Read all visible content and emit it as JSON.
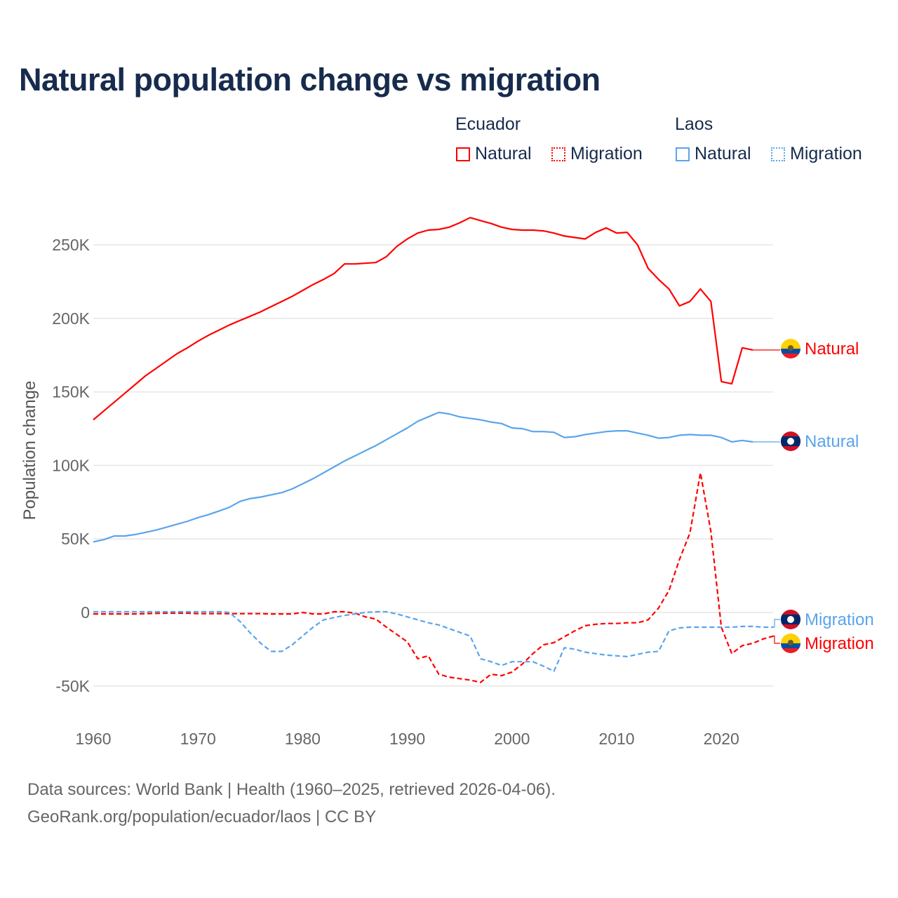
{
  "title": "Natural population change vs migration",
  "legend": {
    "groups": [
      {
        "name": "Ecuador",
        "items": [
          {
            "label": "Natural",
            "style": "solid"
          },
          {
            "label": "Migration",
            "style": "dotted"
          }
        ],
        "color": "#ff0000"
      },
      {
        "name": "Laos",
        "items": [
          {
            "label": "Natural",
            "style": "solid"
          },
          {
            "label": "Migration",
            "style": "dotted"
          }
        ],
        "color": "#5ba4ec"
      }
    ]
  },
  "footer": {
    "line1": "Data sources: World Bank | Health (1960–2025, retrieved 2026-04-06).",
    "line2": "GeoRank.org/population/ecuador/laos | CC BY"
  },
  "chart_data": {
    "type": "line",
    "title": "Natural population change vs migration",
    "xlabel": "",
    "ylabel": "Population change",
    "xlim": [
      1960,
      2025
    ],
    "ylim": [
      -70000,
      290000
    ],
    "xticks": [
      1960,
      1970,
      1980,
      1990,
      2000,
      2010,
      2020
    ],
    "xtick_labels": [
      "1960",
      "1970",
      "1980",
      "1990",
      "2000",
      "2010",
      "2020"
    ],
    "yticks": [
      -50000,
      0,
      50000,
      100000,
      150000,
      200000,
      250000
    ],
    "ytick_labels": [
      "-50K",
      "0",
      "50K",
      "100K",
      "150K",
      "200K",
      "250K"
    ],
    "grid": true,
    "series": [
      {
        "name": "Ecuador Natural",
        "end_label": "Natural",
        "country": "Ecuador",
        "color": "#ff0000",
        "dash": false,
        "start": 1960,
        "values": [
          131000,
          137000,
          143000,
          149000,
          155000,
          161000,
          166000,
          171000,
          176000,
          180000,
          184500,
          188500,
          192000,
          195500,
          198500,
          201500,
          204500,
          208000,
          211500,
          215000,
          219000,
          223000,
          226500,
          230500,
          237000,
          237000,
          237500,
          238000,
          242000,
          249000,
          254000,
          258000,
          260000,
          260500,
          262000,
          265000,
          268500,
          266500,
          264500,
          262000,
          260500,
          260000,
          260000,
          259500,
          258000,
          256000,
          255000,
          254000,
          258500,
          261500,
          258000,
          258500,
          250000,
          234000,
          226500,
          220000,
          208500,
          211500,
          220000,
          211500,
          157000,
          155500,
          180000,
          178500
        ]
      },
      {
        "name": "Ecuador Migration",
        "end_label": "Migration",
        "country": "Ecuador",
        "color": "#ff0000",
        "dash": true,
        "start": 1960,
        "values": [
          -1000,
          -1000,
          -1000,
          -1000,
          -1000,
          -800,
          -600,
          -500,
          -500,
          -500,
          -800,
          -800,
          -800,
          -800,
          -800,
          -800,
          -800,
          -1000,
          -1000,
          -1000,
          0,
          -1000,
          -1000,
          500,
          500,
          -500,
          -3000,
          -4500,
          -10000,
          -15000,
          -20000,
          -31500,
          -29500,
          -42000,
          -44000,
          -45000,
          -46000,
          -47500,
          -42000,
          -43000,
          -40500,
          -35000,
          -28000,
          -22000,
          -20500,
          -16500,
          -12500,
          -9000,
          -8000,
          -7500,
          -7500,
          -7000,
          -7000,
          -5000,
          3000,
          15000,
          36000,
          54000,
          95000,
          55000,
          -10000,
          -28000,
          -22500,
          -21000,
          -18000,
          -16000
        ]
      },
      {
        "name": "Laos Natural",
        "end_label": "Natural",
        "country": "Laos",
        "color": "#5ba4ec",
        "dash": false,
        "start": 1960,
        "values": [
          48000,
          49500,
          52000,
          52000,
          53000,
          54500,
          56000,
          58000,
          60000,
          62000,
          64500,
          66500,
          69000,
          71500,
          75500,
          77500,
          78500,
          80000,
          81500,
          84000,
          87500,
          91000,
          95000,
          99000,
          103000,
          106500,
          110000,
          113500,
          117500,
          121500,
          125500,
          130000,
          133000,
          136000,
          135000,
          133000,
          132000,
          131000,
          129500,
          128500,
          125500,
          125000,
          123000,
          123000,
          122500,
          119000,
          119500,
          121000,
          122000,
          123000,
          123500,
          123500,
          122000,
          120500,
          118500,
          119000,
          120500,
          121000,
          120500,
          120500,
          119000,
          116000,
          117000,
          116000
        ]
      },
      {
        "name": "Laos Migration",
        "end_label": "Migration",
        "country": "Laos",
        "color": "#5ba4ec",
        "dash": true,
        "start": 1960,
        "values": [
          500,
          500,
          500,
          500,
          500,
          500,
          500,
          500,
          500,
          500,
          500,
          500,
          500,
          0,
          -6000,
          -14000,
          -21000,
          -26500,
          -26500,
          -22000,
          -16000,
          -10000,
          -5000,
          -3500,
          -2000,
          -1000,
          0,
          500,
          500,
          -1000,
          -3000,
          -5000,
          -7000,
          -8500,
          -11000,
          -13500,
          -16000,
          -31500,
          -33500,
          -36000,
          -33500,
          -33500,
          -33500,
          -36500,
          -40000,
          -24000,
          -25000,
          -27000,
          -28000,
          -29000,
          -29500,
          -30000,
          -28500,
          -27000,
          -26500,
          -12500,
          -10500,
          -10000,
          -10000,
          -10000,
          -10000,
          -10000,
          -9500,
          -9500,
          -10000,
          -10000
        ]
      }
    ]
  }
}
